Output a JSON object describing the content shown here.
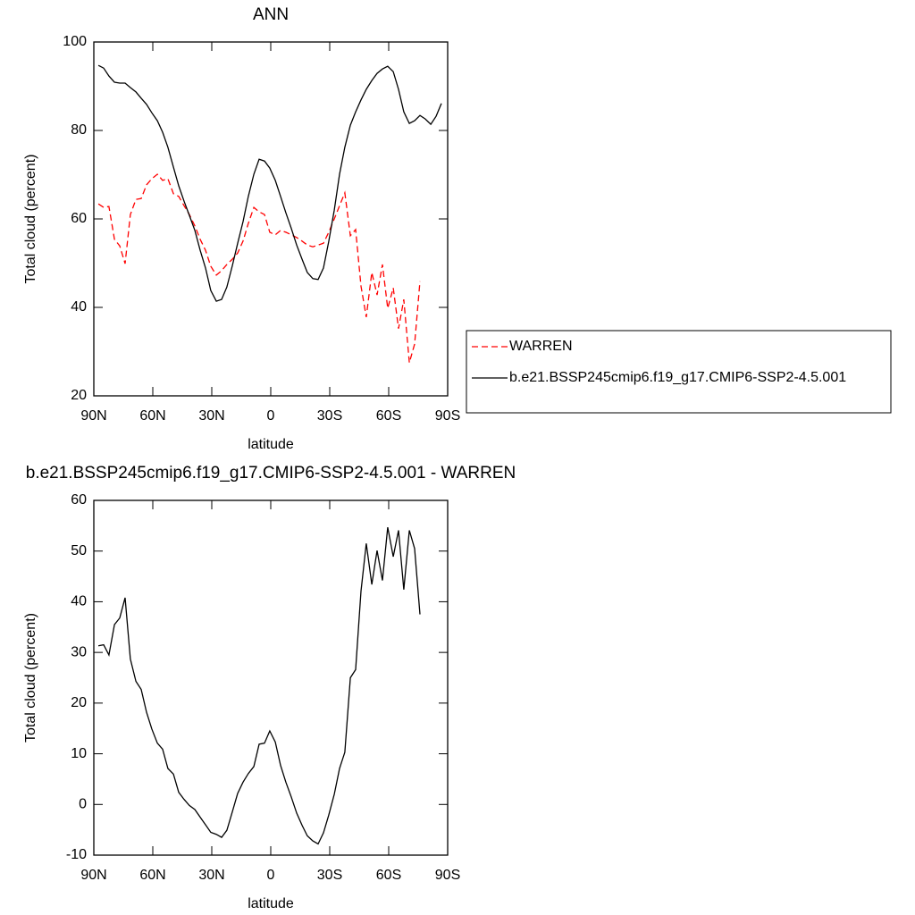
{
  "chart_data": [
    {
      "type": "line",
      "title": "ANN",
      "xlabel": "latitude",
      "ylabel": "Total cloud (percent)",
      "x": [
        87.7,
        85.0,
        82.3,
        79.5,
        76.8,
        74.1,
        71.4,
        68.6,
        65.9,
        63.2,
        60.5,
        57.7,
        55.0,
        52.3,
        49.5,
        46.8,
        44.1,
        41.4,
        38.6,
        35.9,
        33.2,
        30.5,
        27.7,
        25.0,
        22.3,
        19.5,
        16.8,
        14.1,
        11.4,
        8.6,
        5.9,
        3.2,
        0.5,
        -2.3,
        -5.0,
        -7.7,
        -10.5,
        -13.2,
        -15.9,
        -18.6,
        -21.4,
        -24.1,
        -26.8,
        -29.5,
        -32.3,
        -35.0,
        -37.7,
        -40.5,
        -43.2,
        -45.9,
        -48.6,
        -51.4,
        -54.1,
        -56.8,
        -59.5,
        -62.3,
        -65.0,
        -67.7,
        -70.5,
        -73.2,
        -75.9,
        -78.6,
        -81.4,
        -84.1,
        -86.8
      ],
      "xlim": [
        90,
        -90
      ],
      "xticks": [
        {
          "value": 90,
          "label": "90N"
        },
        {
          "value": 60,
          "label": "60N"
        },
        {
          "value": 30,
          "label": "30N"
        },
        0,
        {
          "value": -30,
          "label": "30S"
        },
        {
          "value": -60,
          "label": "60S"
        },
        {
          "value": -90,
          "label": "90S"
        }
      ],
      "ylim": [
        20,
        100
      ],
      "yticks": [
        20,
        40,
        60,
        80,
        100
      ],
      "legend": "right",
      "series": [
        {
          "name": "WARREN",
          "color": "#ff0000",
          "style": "dashed",
          "values": [
            63.4,
            62.6,
            62.8,
            55.4,
            53.9,
            49.9,
            61.0,
            64.4,
            64.6,
            67.7,
            69.1,
            70.1,
            68.7,
            69.1,
            65.7,
            65.1,
            63.0,
            61.0,
            58.4,
            55.4,
            52.9,
            49.3,
            47.3,
            48.3,
            49.7,
            50.9,
            52.3,
            55.0,
            59.0,
            62.6,
            61.6,
            61.0,
            57.0,
            56.4,
            57.4,
            57.0,
            56.4,
            55.8,
            55.0,
            54.1,
            53.7,
            54.1,
            54.5,
            57.0,
            60.0,
            63.0,
            65.9,
            56.2,
            57.6,
            44.8,
            37.8,
            47.9,
            42.8,
            49.7,
            39.8,
            44.4,
            35.2,
            41.8,
            27.5,
            31.7,
            45.9,
            null,
            null,
            null,
            null
          ]
        },
        {
          "name": "b.e21.BSSP245cmip6.f19_g17.CMIP6-SSP2-4.5.001",
          "color": "#000000",
          "style": "solid",
          "values": [
            94.7,
            94.1,
            92.3,
            90.9,
            90.7,
            90.7,
            89.7,
            88.7,
            87.3,
            85.9,
            84.0,
            82.2,
            79.6,
            76.2,
            71.7,
            67.5,
            64.0,
            60.8,
            57.4,
            52.9,
            48.9,
            43.8,
            41.4,
            41.8,
            44.6,
            49.5,
            54.5,
            59.4,
            65.1,
            70.1,
            73.5,
            73.1,
            71.5,
            68.7,
            65.1,
            61.4,
            57.8,
            54.1,
            50.9,
            47.9,
            46.5,
            46.3,
            48.9,
            54.9,
            62.0,
            70.1,
            76.2,
            81.2,
            84.2,
            86.9,
            89.3,
            91.3,
            92.9,
            93.9,
            94.5,
            93.3,
            89.3,
            84.2,
            81.6,
            82.2,
            83.4,
            82.6,
            81.4,
            83.2,
            86.1
          ]
        }
      ]
    },
    {
      "type": "line",
      "title": "b.e21.BSSP245cmip6.f19_g17.CMIP6-SSP2-4.5.001 - WARREN",
      "xlabel": "latitude",
      "ylabel": "Total cloud (percent)",
      "x": [
        87.7,
        85.0,
        82.3,
        79.5,
        76.8,
        74.1,
        71.4,
        68.6,
        65.9,
        63.2,
        60.5,
        57.7,
        55.0,
        52.3,
        49.5,
        46.8,
        44.1,
        41.4,
        38.6,
        35.9,
        33.2,
        30.5,
        27.7,
        25.0,
        22.3,
        19.5,
        16.8,
        14.1,
        11.4,
        8.6,
        5.9,
        3.2,
        0.5,
        -2.3,
        -5.0,
        -7.7,
        -10.5,
        -13.2,
        -15.9,
        -18.6,
        -21.4,
        -24.1,
        -26.8,
        -29.5,
        -32.3,
        -35.0,
        -37.7,
        -40.5,
        -43.2,
        -45.9,
        -48.6,
        -51.4,
        -54.1,
        -56.8,
        -59.5,
        -62.3,
        -65.0,
        -67.7,
        -70.5,
        -73.2,
        -75.9
      ],
      "xlim": [
        90,
        -90
      ],
      "xticks": [
        {
          "value": 90,
          "label": "90N"
        },
        {
          "value": 60,
          "label": "60N"
        },
        {
          "value": 30,
          "label": "30N"
        },
        0,
        {
          "value": -30,
          "label": "30S"
        },
        {
          "value": -60,
          "label": "60S"
        },
        {
          "value": -90,
          "label": "90S"
        }
      ],
      "ylim": [
        -10,
        60
      ],
      "yticks": [
        -10,
        0,
        10,
        20,
        30,
        40,
        50,
        60
      ],
      "series": [
        {
          "color": "#000000",
          "style": "solid",
          "values": [
            31.3,
            31.5,
            29.5,
            35.5,
            36.8,
            40.8,
            28.7,
            24.3,
            22.7,
            18.2,
            14.9,
            12.1,
            10.9,
            7.1,
            6.0,
            2.4,
            1.0,
            -0.2,
            -1.0,
            -2.5,
            -4.0,
            -5.5,
            -5.9,
            -6.5,
            -5.1,
            -1.4,
            2.2,
            4.4,
            6.1,
            7.5,
            11.9,
            12.1,
            14.5,
            12.3,
            7.7,
            4.4,
            1.4,
            -1.7,
            -4.1,
            -6.2,
            -7.2,
            -7.8,
            -5.6,
            -2.1,
            2.0,
            7.1,
            10.3,
            25.0,
            26.6,
            42.1,
            51.5,
            43.4,
            50.1,
            44.2,
            54.7,
            48.9,
            54.1,
            42.4,
            54.1,
            50.5,
            37.5
          ]
        }
      ]
    }
  ]
}
